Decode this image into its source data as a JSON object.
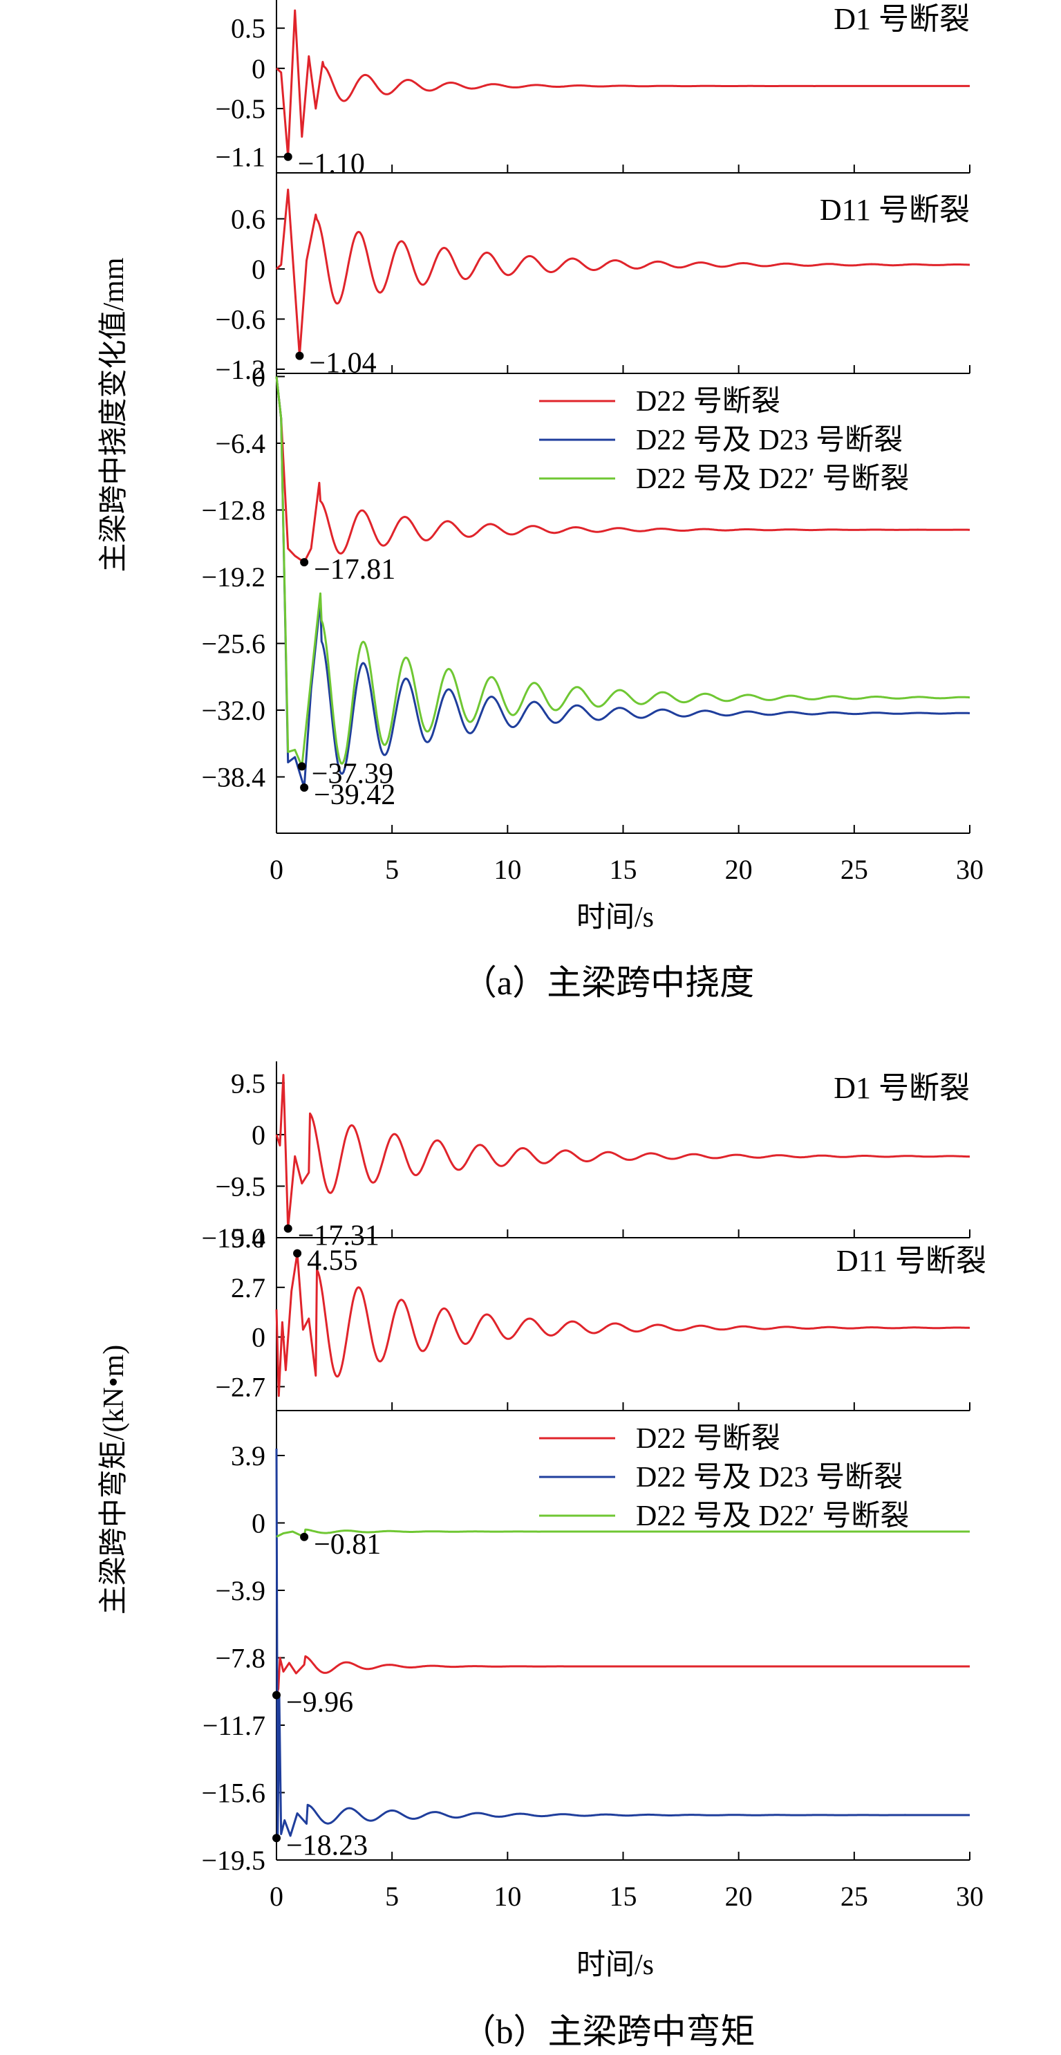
{
  "colors": {
    "red": "#e0242b",
    "blue": "#1f3e9c",
    "green": "#6fc733",
    "axis": "#000000"
  },
  "figure": {
    "x_ticks": [
      "0",
      "5",
      "10",
      "15",
      "20",
      "25",
      "30"
    ],
    "panel_a": {
      "caption": "（a）主梁跨中挠度",
      "ylabel": "主梁跨中挠度变化值/mm",
      "xlabel": "时间/s"
    },
    "panel_b": {
      "caption": "（b）主梁跨中弯矩",
      "ylabel": "主梁跨中弯矩/(kN•m)",
      "xlabel": "时间/s"
    },
    "legend": {
      "d22": "D22 号断裂",
      "d22_d23": "D22 号及 D23 号断裂",
      "d22_d22p": "D22 号及 D22′ 号断裂"
    }
  },
  "chart_data": [
    {
      "type": "line",
      "panel": "a-1",
      "label": "D1 号断裂",
      "xlim": [
        0,
        30
      ],
      "ylim": [
        -1.3,
        0.85
      ],
      "y_ticks": [
        "0.5",
        "0",
        "-0.5",
        "-1.1"
      ],
      "y_tick_values": [
        0.5,
        0,
        -0.5,
        -1.1
      ],
      "series": [
        {
          "color": "red",
          "final": -0.22,
          "amplitude": 0.25,
          "period": 1.85,
          "decay": 0.32,
          "phase": 1.5,
          "points": [
            [
              0,
              0
            ],
            [
              0.2,
              -0.05
            ],
            [
              0.5,
              -1.1
            ],
            [
              0.8,
              0.72
            ],
            [
              1.1,
              -0.85
            ],
            [
              1.4,
              0.15
            ],
            [
              1.7,
              -0.5
            ],
            [
              2.0,
              0.08
            ]
          ]
        }
      ],
      "annotations": [
        {
          "x": 0.5,
          "y": -1.1,
          "text": "-1.10"
        }
      ]
    },
    {
      "type": "line",
      "panel": "a-2",
      "label": "D11 号断裂",
      "xlim": [
        0,
        30
      ],
      "ylim": [
        -1.25,
        1.15
      ],
      "y_ticks": [
        "0.6",
        "0",
        "-0.6",
        "-1.2"
      ],
      "y_tick_values": [
        0.6,
        0,
        -0.6,
        -1.2
      ],
      "series": [
        {
          "color": "red",
          "final": 0.05,
          "amplitude": 0.55,
          "period": 1.85,
          "decay": 0.18,
          "phase": 1.5,
          "points": [
            [
              0,
              0
            ],
            [
              0.2,
              0.05
            ],
            [
              0.5,
              0.95
            ],
            [
              1.0,
              -1.04
            ],
            [
              1.3,
              0.1
            ],
            [
              1.7,
              0.65
            ]
          ]
        }
      ],
      "annotations": [
        {
          "x": 1.0,
          "y": -1.04,
          "text": "-1.04"
        }
      ]
    },
    {
      "type": "line",
      "panel": "a-3",
      "xlim": [
        0,
        30
      ],
      "ylim": [
        -43.8,
        0.3
      ],
      "y_ticks": [
        "0",
        "-6.4",
        "-12.8",
        "-19.2",
        "-25.6",
        "-32.0",
        "-38.4"
      ],
      "y_tick_values": [
        0,
        -6.4,
        -12.8,
        -19.2,
        -25.6,
        -32.0,
        -38.4
      ],
      "series": [
        {
          "name": "D22 号断裂",
          "color": "red",
          "final": -14.7,
          "amplitude": 2.8,
          "period": 1.85,
          "decay": 0.22,
          "phase": 1.5,
          "points": [
            [
              0,
              0
            ],
            [
              0.2,
              -4
            ],
            [
              0.5,
              -16.5
            ],
            [
              0.8,
              -17.2
            ],
            [
              1.2,
              -17.81
            ],
            [
              1.5,
              -16.5
            ],
            [
              1.85,
              -10.2
            ]
          ]
        },
        {
          "name": "D22 号及 D23 号断裂",
          "color": "blue",
          "final": -32.3,
          "amplitude": 7,
          "period": 1.85,
          "decay": 0.2,
          "phase": 1.5,
          "points": [
            [
              0,
              0
            ],
            [
              0.2,
              -4
            ],
            [
              0.5,
              -37
            ],
            [
              0.8,
              -36.5
            ],
            [
              1.2,
              -39.42
            ],
            [
              1.5,
              -30
            ],
            [
              1.9,
              -21.5
            ]
          ]
        },
        {
          "name": "D22 号及 D22′ 号断裂",
          "color": "green",
          "final": -30.8,
          "amplitude": 7.5,
          "period": 1.85,
          "decay": 0.18,
          "phase": 1.5,
          "points": [
            [
              0,
              0
            ],
            [
              0.2,
              -4
            ],
            [
              0.5,
              -36
            ],
            [
              0.8,
              -35.8
            ],
            [
              1.1,
              -37.39
            ],
            [
              1.5,
              -29
            ],
            [
              1.9,
              -20.8
            ]
          ]
        }
      ],
      "annotations": [
        {
          "x": 1.2,
          "y": -17.81,
          "text": "-17.81"
        },
        {
          "x": 1.1,
          "y": -37.39,
          "text": "-37.39"
        },
        {
          "x": 1.2,
          "y": -39.42,
          "text": "-39.42"
        }
      ]
    },
    {
      "type": "line",
      "panel": "b-1",
      "label": "D1 号断裂",
      "xlim": [
        0,
        30
      ],
      "ylim": [
        -19.0,
        13.5
      ],
      "y_ticks": [
        "9.5",
        "0",
        "-9.5",
        "-19.0"
      ],
      "y_tick_values": [
        9.5,
        0,
        -9.5,
        -19.0
      ],
      "series": [
        {
          "color": "red",
          "final": -4.0,
          "amplitude": 8,
          "period": 1.85,
          "decay": 0.18,
          "phase": 1.5,
          "points": [
            [
              0,
              0
            ],
            [
              0.15,
              -2
            ],
            [
              0.3,
              11
            ],
            [
              0.5,
              -17.31
            ],
            [
              0.8,
              -4
            ],
            [
              1.1,
              -9
            ],
            [
              1.4,
              -7
            ]
          ]
        }
      ],
      "annotations": [
        {
          "x": 0.5,
          "y": -17.31,
          "text": "-17.31"
        }
      ]
    },
    {
      "type": "line",
      "panel": "b-2",
      "label": "D11 号断裂",
      "xlim": [
        0,
        30
      ],
      "ylim": [
        -4.0,
        5.4
      ],
      "y_ticks": [
        "5.4",
        "2.7",
        "0",
        "-2.7"
      ],
      "y_tick_values": [
        5.4,
        2.7,
        0,
        -2.7
      ],
      "series": [
        {
          "color": "red",
          "final": 0.5,
          "amplitude": 3.2,
          "period": 1.85,
          "decay": 0.2,
          "phase": 1.5,
          "points": [
            [
              0,
              1.5
            ],
            [
              0.1,
              -3.2
            ],
            [
              0.25,
              0.8
            ],
            [
              0.4,
              -1.8
            ],
            [
              0.65,
              2.5
            ],
            [
              0.9,
              4.55
            ],
            [
              1.15,
              0.4
            ],
            [
              1.4,
              1.0
            ],
            [
              1.7,
              -2.1
            ]
          ]
        }
      ],
      "annotations": [
        {
          "x": 0.9,
          "y": 4.55,
          "text": "4.55"
        }
      ]
    },
    {
      "type": "line",
      "panel": "b-3",
      "xlim": [
        0,
        30
      ],
      "ylim": [
        -19.5,
        6.5
      ],
      "y_ticks": [
        "3.9",
        "0",
        "-3.9",
        "-7.8",
        "-11.7",
        "-15.6",
        "-19.5"
      ],
      "y_tick_values": [
        3.9,
        0,
        -3.9,
        -7.8,
        -11.7,
        -15.6,
        -19.5
      ],
      "series": [
        {
          "name": "D22 号断裂",
          "color": "red",
          "final": -8.3,
          "amplitude": 0.6,
          "period": 1.85,
          "decay": 0.5,
          "phase": 1.5,
          "points": [
            [
              0,
              -9.96
            ],
            [
              0.08,
              -9.6
            ],
            [
              0.15,
              -7.8
            ],
            [
              0.3,
              -8.6
            ],
            [
              0.55,
              -8.1
            ],
            [
              0.85,
              -8.7
            ],
            [
              1.2,
              -8.2
            ]
          ]
        },
        {
          "name": "D22 号及 D23 号断裂",
          "color": "blue",
          "final": -16.9,
          "amplitude": 0.6,
          "period": 1.85,
          "decay": 0.22,
          "phase": 1.5,
          "points": [
            [
              0,
              4.3
            ],
            [
              0.05,
              -18.23
            ],
            [
              0.12,
              -10
            ],
            [
              0.2,
              -18.0
            ],
            [
              0.35,
              -17.2
            ],
            [
              0.6,
              -18.1
            ],
            [
              0.9,
              -16.8
            ],
            [
              1.3,
              -17.4
            ]
          ]
        },
        {
          "name": "D22 号及 D22′ 号断裂",
          "color": "green",
          "final": -0.5,
          "amplitude": 0.12,
          "period": 1.85,
          "decay": 0.4,
          "phase": 1.5,
          "points": [
            [
              0,
              -0.8
            ],
            [
              0.3,
              -0.6
            ],
            [
              0.7,
              -0.5
            ],
            [
              1.2,
              -0.81
            ]
          ]
        }
      ],
      "annotations": [
        {
          "x": 1.2,
          "y": -0.81,
          "text": "-0.81"
        },
        {
          "x": 0.0,
          "y": -9.96,
          "text": "-9.96"
        },
        {
          "x": 0.0,
          "y": -18.23,
          "text": "-18.23"
        }
      ]
    }
  ]
}
